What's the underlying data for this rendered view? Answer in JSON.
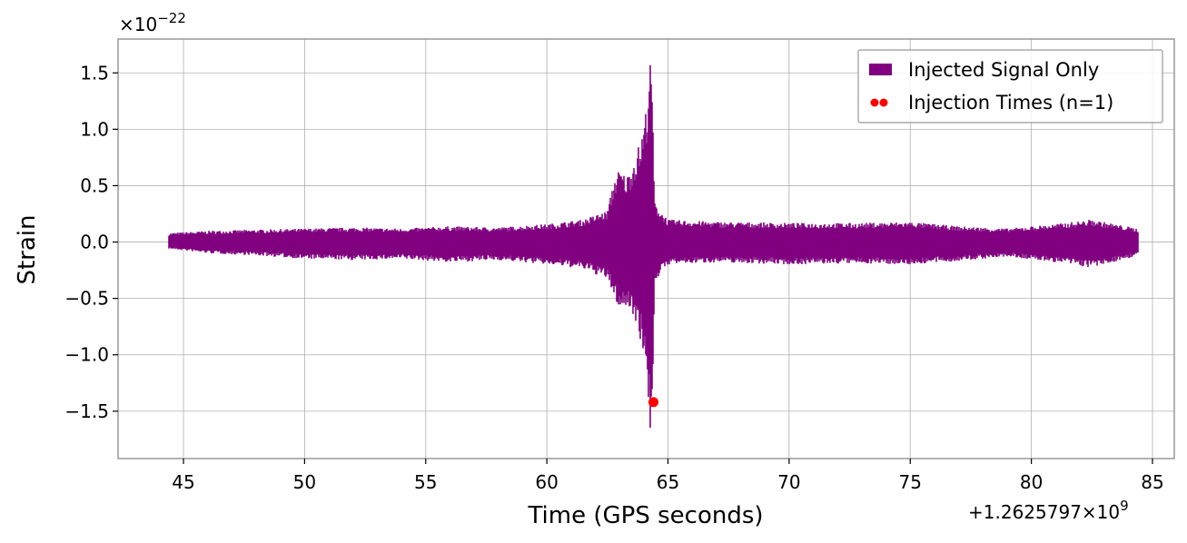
{
  "chart_data": {
    "type": "line",
    "title": "",
    "xlabel": "Time (GPS seconds)",
    "ylabel": "Strain",
    "x_offset_label": "+1.2625797×10",
    "x_offset_exponent": "9",
    "y_scale_label": "×10",
    "y_scale_exponent": "−22",
    "xlim": [
      42.3,
      85.9
    ],
    "ylim": [
      -1.92,
      1.8
    ],
    "x_ticks": [
      45,
      50,
      55,
      60,
      65,
      70,
      75,
      80,
      85
    ],
    "x_tick_labels": [
      "45",
      "50",
      "55",
      "60",
      "65",
      "70",
      "75",
      "80",
      "85"
    ],
    "y_ticks": [
      1.5,
      1.0,
      0.5,
      0.0,
      -0.5,
      -1.0,
      -1.5
    ],
    "y_tick_labels": [
      "1.5",
      "1.0",
      "0.5",
      "0.0",
      "−0.5",
      "−1.0",
      "−1.5"
    ],
    "grid": true,
    "legend_position": "top-right",
    "series": [
      {
        "name": "Injected Signal Only",
        "color": "#800080",
        "x_start": 44.4,
        "x_end": 84.4,
        "envelope": {
          "x": [
            44.4,
            46,
            48,
            50,
            52,
            54,
            56,
            58,
            60,
            61.5,
            62.5,
            62.8,
            63.0,
            63.3,
            63.6,
            63.9,
            64.1,
            64.25,
            64.35,
            64.45,
            65,
            67,
            70,
            73,
            75,
            77,
            79,
            81,
            82.5,
            84.4
          ],
          "upper": [
            0.08,
            0.1,
            0.11,
            0.12,
            0.13,
            0.12,
            0.14,
            0.13,
            0.16,
            0.2,
            0.28,
            0.58,
            0.65,
            0.58,
            0.75,
            0.92,
            1.2,
            1.63,
            1.4,
            0.35,
            0.2,
            0.18,
            0.17,
            0.17,
            0.18,
            0.14,
            0.12,
            0.16,
            0.2,
            0.12
          ],
          "lower": [
            -0.06,
            -0.1,
            -0.12,
            -0.15,
            -0.16,
            -0.15,
            -0.18,
            -0.16,
            -0.2,
            -0.24,
            -0.33,
            -0.5,
            -0.6,
            -0.58,
            -0.65,
            -0.9,
            -1.1,
            -1.74,
            -1.5,
            -0.35,
            -0.2,
            -0.18,
            -0.2,
            -0.19,
            -0.2,
            -0.17,
            -0.13,
            -0.18,
            -0.23,
            -0.12
          ]
        }
      },
      {
        "name": "Injection Times (n=1)",
        "color": "#ff0000",
        "points": [
          {
            "x": 64.4,
            "y": -1.42
          }
        ]
      }
    ]
  }
}
